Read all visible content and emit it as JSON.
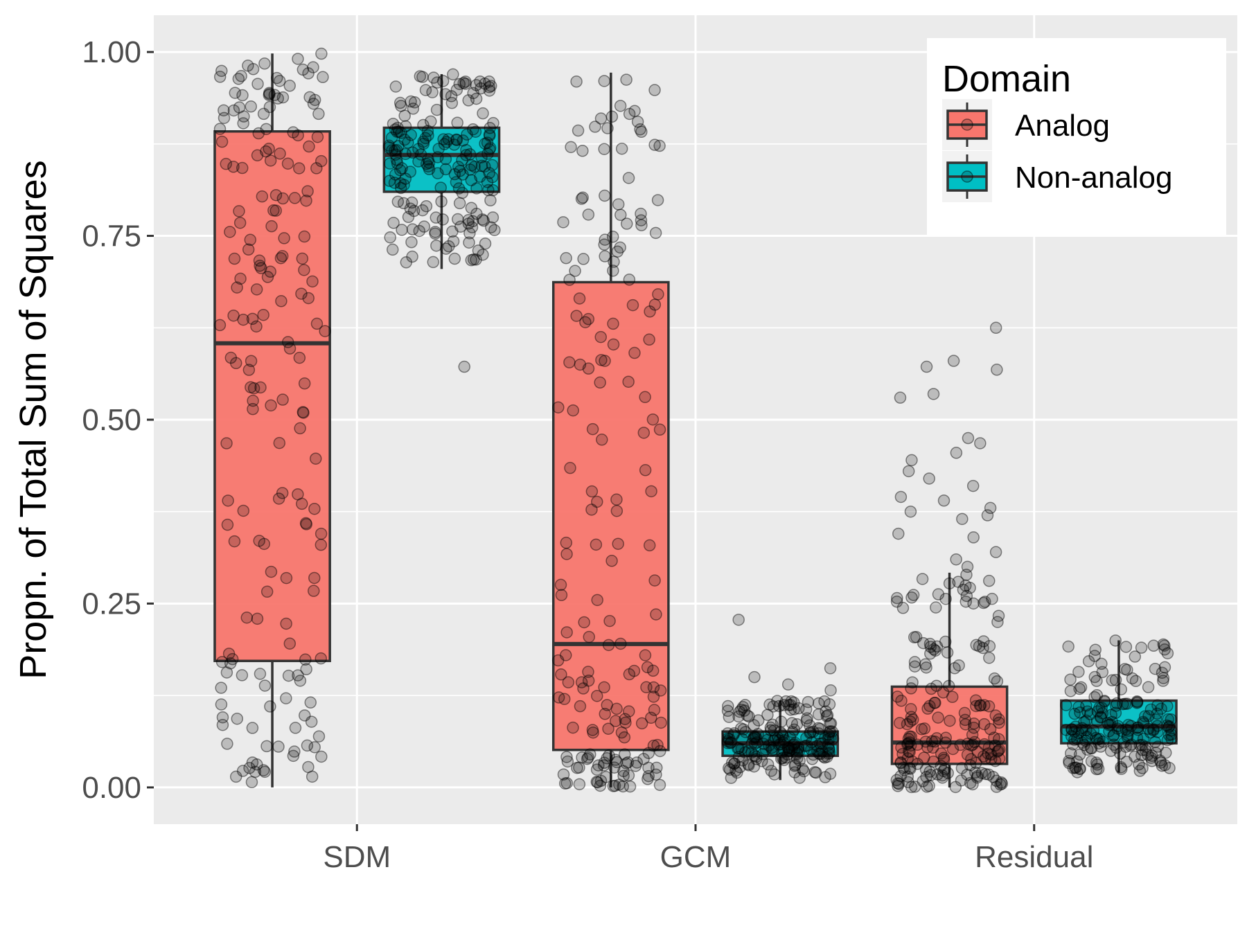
{
  "chart_data": {
    "type": "boxplot",
    "ylabel": "Propn. of Total Sum of Squares",
    "xlabel": "",
    "ylim": [
      -0.05,
      1.05
    ],
    "yticks": [
      0.0,
      0.25,
      0.5,
      0.75,
      1.0
    ],
    "ytick_labels": [
      "0.00",
      "0.25",
      "0.50",
      "0.75",
      "1.00"
    ],
    "categories": [
      "SDM",
      "GCM",
      "Residual"
    ],
    "grid": true,
    "legend": {
      "title": "Domain",
      "position": "top-right"
    },
    "series": [
      {
        "name": "Analog",
        "color": "#F8766D",
        "boxes": [
          {
            "category": "SDM",
            "min": 0.0,
            "q1": 0.172,
            "median": 0.604,
            "q3": 0.892,
            "max": 0.998,
            "outliers": []
          },
          {
            "category": "GCM",
            "min": 0.0,
            "q1": 0.051,
            "median": 0.195,
            "q3": 0.687,
            "max": 0.972,
            "outliers": []
          },
          {
            "category": "Residual",
            "min": 0.0,
            "q1": 0.032,
            "median": 0.061,
            "q3": 0.137,
            "max": 0.292,
            "outliers": [
              0.625,
              0.58,
              0.572,
              0.568,
              0.535,
              0.53,
              0.475,
              0.468,
              0.455,
              0.445,
              0.43,
              0.42,
              0.41,
              0.395,
              0.39,
              0.38,
              0.375,
              0.37,
              0.365,
              0.345,
              0.34,
              0.32,
              0.31,
              0.3
            ]
          }
        ]
      },
      {
        "name": "Non-analog",
        "color": "#00BFC4",
        "boxes": [
          {
            "category": "SDM",
            "min": 0.705,
            "q1": 0.81,
            "median": 0.86,
            "q3": 0.897,
            "max": 0.97,
            "outliers": [
              0.572
            ]
          },
          {
            "category": "GCM",
            "min": 0.01,
            "q1": 0.043,
            "median": 0.06,
            "q3": 0.076,
            "max": 0.118,
            "outliers": [
              0.228,
              0.162,
              0.15,
              0.14,
              0.132
            ]
          },
          {
            "category": "Residual",
            "min": 0.02,
            "q1": 0.06,
            "median": 0.083,
            "q3": 0.118,
            "max": 0.2,
            "outliers": []
          }
        ]
      }
    ]
  }
}
